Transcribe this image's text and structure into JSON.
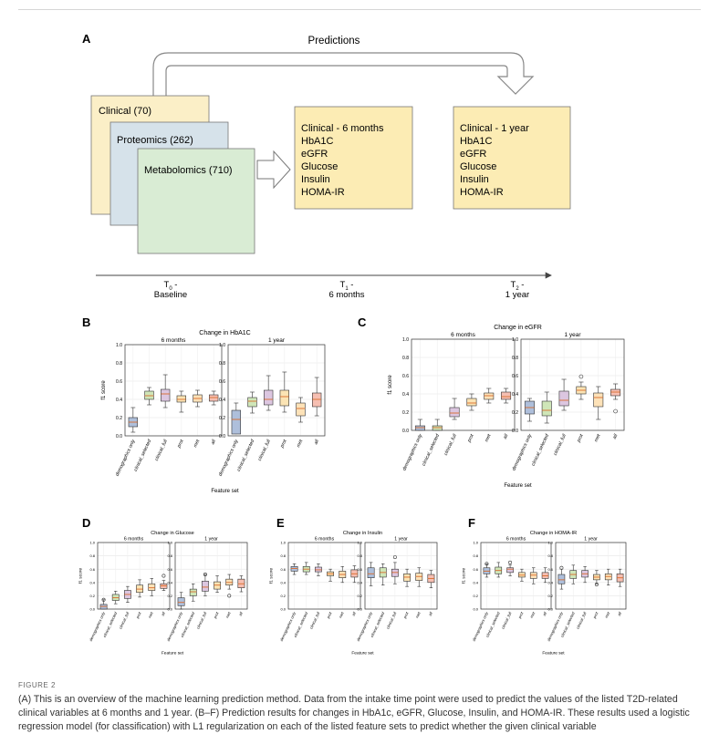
{
  "figure_label": "FIGURE 2",
  "caption": "(A) This is an overview of the machine learning prediction method. Data from the intake time point were used to predict the values of the listed T2D-related clinical variables at 6 months and 1 year. (B–F) Prediction results for changes in HbA1c, eGFR, Glucose, Insulin, and HOMA-IR. These results used a logistic regression model (for classification) with L1 regularization on each of the listed feature sets to predict whether the given clinical variable",
  "panel_a": {
    "letter": "A",
    "arrow_label": "Predictions",
    "cards": [
      "Clinical (70)",
      "Proteomics (262)",
      "Metabolomics (710)"
    ],
    "card_colors": [
      "#fbefc7",
      "#d6e2ea",
      "#d9ecd4"
    ],
    "box_color": "#fcecb4",
    "box_6m": [
      "Clinical - 6 months",
      "HbA1C",
      "eGFR",
      "Glucose",
      "Insulin",
      "HOMA-IR"
    ],
    "box_1y": [
      "Clinical - 1 year",
      "HbA1C",
      "eGFR",
      "Glucose",
      "Insulin",
      "HOMA-IR"
    ],
    "timeline": [
      {
        "t": "T",
        "sub": "0",
        "suffix": " -",
        "label": "Baseline"
      },
      {
        "t": "T",
        "sub": "1",
        "suffix": " -",
        "label": "6 months"
      },
      {
        "t": "T",
        "sub": "2",
        "suffix": " -",
        "label": "1 year"
      }
    ]
  },
  "chart_data": [
    {
      "panel": "B",
      "type": "box",
      "title": "Change in HbA1C",
      "subplots": [
        "6 months",
        "1 year"
      ],
      "ylabel": "f1 score",
      "xlabel": "Feature set",
      "ylim": [
        0,
        1.0
      ],
      "yticks": [
        "0.0",
        "0.2",
        "0.4",
        "0.6",
        "0.8",
        "1.0"
      ],
      "categories": [
        "demographics only",
        "clinical_selected",
        "clinical_full",
        "prot",
        "met",
        "all"
      ],
      "colors": [
        "#aebfdb",
        "#cfe6b8",
        "#dcc6e0",
        "#fbe4b4",
        "#fde2b8",
        "#f6bfb2"
      ],
      "boxes_6m": [
        [
          0.04,
          0.1,
          0.15,
          0.2,
          0.31
        ],
        [
          0.34,
          0.4,
          0.44,
          0.49,
          0.53
        ],
        [
          0.31,
          0.38,
          0.46,
          0.51,
          0.67
        ],
        [
          0.26,
          0.37,
          0.4,
          0.44,
          0.49
        ],
        [
          0.32,
          0.37,
          0.41,
          0.45,
          0.5
        ],
        [
          0.34,
          0.38,
          0.42,
          0.45,
          0.49
        ]
      ],
      "boxes_1y": [
        [
          0.03,
          0.02,
          0.18,
          0.28,
          0.36
        ],
        [
          0.25,
          0.32,
          0.38,
          0.42,
          0.48
        ],
        [
          0.28,
          0.34,
          0.4,
          0.5,
          0.66
        ],
        [
          0.26,
          0.33,
          0.43,
          0.5,
          0.7
        ],
        [
          0.15,
          0.22,
          0.3,
          0.36,
          0.42
        ],
        [
          0.22,
          0.32,
          0.4,
          0.47,
          0.64
        ]
      ],
      "outliers_6m": [],
      "outliers_1y": []
    },
    {
      "panel": "C",
      "type": "box",
      "title": "Change in eGFR",
      "subplots": [
        "6 months",
        "1 year"
      ],
      "ylabel": "f1 score",
      "xlabel": "Feature set",
      "ylim": [
        0,
        1.0
      ],
      "yticks": [
        "0.0",
        "0.2",
        "0.4",
        "0.6",
        "0.8",
        "1.0"
      ],
      "categories": [
        "demographics only",
        "clinical_selected",
        "clinical_full",
        "prot",
        "met",
        "all"
      ],
      "colors": [
        "#aebfdb",
        "#cfe6b8",
        "#dcc6e0",
        "#fbe4b4",
        "#fde2b8",
        "#f6bfb2"
      ],
      "boxes_6m": [
        [
          0.0,
          0.0,
          0.03,
          0.05,
          0.12
        ],
        [
          0.0,
          0.0,
          0.03,
          0.05,
          0.12
        ],
        [
          0.12,
          0.15,
          0.19,
          0.25,
          0.35
        ],
        [
          0.22,
          0.27,
          0.3,
          0.35,
          0.4
        ],
        [
          0.3,
          0.34,
          0.38,
          0.41,
          0.46
        ],
        [
          0.3,
          0.34,
          0.37,
          0.42,
          0.46
        ]
      ],
      "boxes_1y": [
        [
          0.1,
          0.18,
          0.25,
          0.32,
          0.35
        ],
        [
          0.08,
          0.16,
          0.22,
          0.32,
          0.42
        ],
        [
          0.22,
          0.27,
          0.33,
          0.43,
          0.56
        ],
        [
          0.34,
          0.4,
          0.44,
          0.48,
          0.53
        ],
        [
          0.12,
          0.26,
          0.36,
          0.41,
          0.48
        ],
        [
          0.34,
          0.38,
          0.42,
          0.45,
          0.51
        ]
      ],
      "outliers_6m": [],
      "outliers_1y": [
        [
          3,
          0.59
        ],
        [
          5,
          0.21
        ]
      ]
    },
    {
      "panel": "D",
      "type": "box",
      "title": "Change in Glucose",
      "subplots": [
        "6 months",
        "1 year"
      ],
      "ylabel": "f1 score",
      "xlabel": "Feature set",
      "ylim": [
        0,
        1.0
      ],
      "yticks": [
        "0.0",
        "0.2",
        "0.4",
        "0.6",
        "0.8",
        "1.0"
      ],
      "categories": [
        "demographics only",
        "clinical_selected",
        "clinical_full",
        "prot",
        "met",
        "all"
      ],
      "colors": [
        "#aebfdb",
        "#cfe6b8",
        "#dcc6e0",
        "#fbe4b4",
        "#fde2b8",
        "#f6bfb2"
      ],
      "boxes_6m": [
        [
          0.0,
          0.0,
          0.04,
          0.07,
          0.14
        ],
        [
          0.08,
          0.13,
          0.17,
          0.22,
          0.27
        ],
        [
          0.1,
          0.16,
          0.22,
          0.28,
          0.34
        ],
        [
          0.18,
          0.25,
          0.3,
          0.36,
          0.44
        ],
        [
          0.2,
          0.28,
          0.32,
          0.38,
          0.46
        ],
        [
          0.28,
          0.31,
          0.35,
          0.38,
          0.43
        ]
      ],
      "boxes_1y": [
        [
          0.0,
          0.05,
          0.1,
          0.17,
          0.25
        ],
        [
          0.12,
          0.2,
          0.26,
          0.3,
          0.38
        ],
        [
          0.2,
          0.27,
          0.33,
          0.42,
          0.52
        ],
        [
          0.25,
          0.3,
          0.36,
          0.41,
          0.5
        ],
        [
          0.3,
          0.36,
          0.4,
          0.45,
          0.52
        ],
        [
          0.26,
          0.32,
          0.38,
          0.45,
          0.5
        ]
      ],
      "outliers_6m": [
        [
          0,
          0.14
        ],
        [
          5,
          0.5
        ]
      ],
      "outliers_1y": [
        [
          2,
          0.52
        ],
        [
          4,
          0.2
        ]
      ]
    },
    {
      "panel": "E",
      "type": "box",
      "title": "Change in Insulin",
      "subplots": [
        "6 months",
        "1 year"
      ],
      "ylabel": "f1 score",
      "xlabel": "Feature set",
      "ylim": [
        0,
        1.0
      ],
      "yticks": [
        "0.0",
        "0.2",
        "0.4",
        "0.6",
        "0.8",
        "1.0"
      ],
      "categories": [
        "demographics only",
        "clinical_selected",
        "clinical_full",
        "prot",
        "met",
        "all"
      ],
      "colors": [
        "#aebfdb",
        "#cfe6b8",
        "#dcc6e0",
        "#fbe4b4",
        "#fde2b8",
        "#f6bfb2"
      ],
      "boxes_6m": [
        [
          0.52,
          0.57,
          0.61,
          0.64,
          0.68
        ],
        [
          0.52,
          0.56,
          0.6,
          0.64,
          0.7
        ],
        [
          0.5,
          0.56,
          0.59,
          0.63,
          0.68
        ],
        [
          0.42,
          0.5,
          0.53,
          0.56,
          0.6
        ],
        [
          0.4,
          0.47,
          0.52,
          0.57,
          0.64
        ],
        [
          0.4,
          0.48,
          0.53,
          0.59,
          0.65
        ]
      ],
      "boxes_1y": [
        [
          0.35,
          0.47,
          0.53,
          0.62,
          0.7
        ],
        [
          0.36,
          0.48,
          0.55,
          0.62,
          0.68
        ],
        [
          0.38,
          0.49,
          0.55,
          0.6,
          0.7
        ],
        [
          0.34,
          0.42,
          0.48,
          0.53,
          0.6
        ],
        [
          0.34,
          0.43,
          0.49,
          0.54,
          0.62
        ],
        [
          0.32,
          0.4,
          0.46,
          0.52,
          0.58
        ]
      ],
      "outliers_6m": [],
      "outliers_1y": [
        [
          2,
          0.78
        ]
      ]
    },
    {
      "panel": "F",
      "type": "box",
      "title": "Change in HOMA-IR",
      "subplots": [
        "6 months",
        "1 year"
      ],
      "ylabel": "f1 score",
      "xlabel": "Feature set",
      "ylim": [
        0,
        1.0
      ],
      "yticks": [
        "0.0",
        "0.2",
        "0.4",
        "0.6",
        "0.8",
        "1.0"
      ],
      "categories": [
        "demographics only",
        "clinical_selected",
        "clinical_full",
        "prot",
        "met",
        "all"
      ],
      "colors": [
        "#aebfdb",
        "#cfe6b8",
        "#dcc6e0",
        "#fbe4b4",
        "#fde2b8",
        "#f6bfb2"
      ],
      "boxes_6m": [
        [
          0.48,
          0.53,
          0.57,
          0.62,
          0.68
        ],
        [
          0.48,
          0.53,
          0.58,
          0.63,
          0.7
        ],
        [
          0.5,
          0.55,
          0.6,
          0.62,
          0.66
        ],
        [
          0.42,
          0.48,
          0.51,
          0.55,
          0.6
        ],
        [
          0.38,
          0.46,
          0.51,
          0.55,
          0.62
        ],
        [
          0.4,
          0.46,
          0.5,
          0.55,
          0.62
        ]
      ],
      "boxes_1y": [
        [
          0.3,
          0.38,
          0.44,
          0.52,
          0.6
        ],
        [
          0.38,
          0.46,
          0.52,
          0.58,
          0.66
        ],
        [
          0.4,
          0.48,
          0.53,
          0.58,
          0.64
        ],
        [
          0.38,
          0.44,
          0.48,
          0.52,
          0.58
        ],
        [
          0.36,
          0.44,
          0.49,
          0.53,
          0.6
        ],
        [
          0.34,
          0.41,
          0.47,
          0.53,
          0.6
        ]
      ],
      "outliers_6m": [
        [
          0,
          0.68
        ],
        [
          2,
          0.7
        ]
      ],
      "outliers_1y": [
        [
          0,
          0.62
        ],
        [
          3,
          0.37
        ]
      ]
    }
  ]
}
